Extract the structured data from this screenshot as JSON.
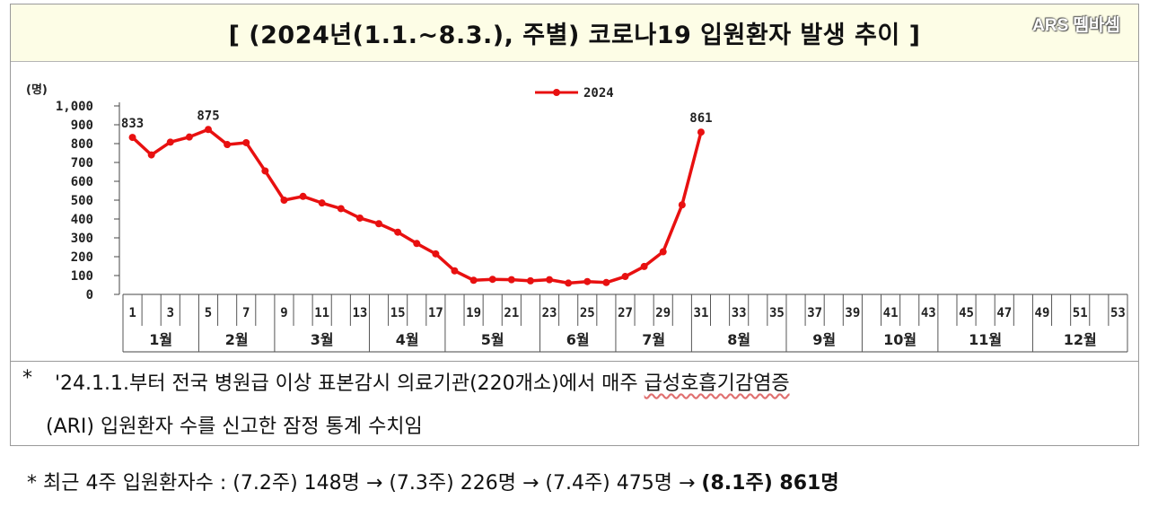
{
  "title": "[ (2024년(1.1.~8.3.), 주별) 코로나19 입원환자 발생 추이 ]",
  "watermark": "ARS 뗌바셈",
  "chart_data": {
    "type": "line",
    "ylabel": "(명)",
    "ylim": [
      0,
      1000
    ],
    "yticks": [
      "0",
      "100",
      "200",
      "300",
      "400",
      "500",
      "600",
      "700",
      "800",
      "900",
      "1,000"
    ],
    "xweeks_total": 53,
    "xtick_labels": [
      "1",
      "3",
      "5",
      "7",
      "9",
      "11",
      "13",
      "15",
      "17",
      "19",
      "21",
      "23",
      "25",
      "27",
      "29",
      "31",
      "33",
      "35",
      "37",
      "39",
      "41",
      "43",
      "45",
      "47",
      "49",
      "51",
      "53"
    ],
    "months": [
      {
        "label": "1월",
        "start": 1,
        "end": 4
      },
      {
        "label": "2월",
        "start": 5,
        "end": 8
      },
      {
        "label": "3월",
        "start": 9,
        "end": 13
      },
      {
        "label": "4월",
        "start": 14,
        "end": 17
      },
      {
        "label": "5월",
        "start": 18,
        "end": 22
      },
      {
        "label": "6월",
        "start": 23,
        "end": 26
      },
      {
        "label": "7월",
        "start": 27,
        "end": 30
      },
      {
        "label": "8월",
        "start": 31,
        "end": 35
      },
      {
        "label": "9월",
        "start": 36,
        "end": 39
      },
      {
        "label": "10월",
        "start": 40,
        "end": 43
      },
      {
        "label": "11월",
        "start": 44,
        "end": 48
      },
      {
        "label": "12월",
        "start": 49,
        "end": 53
      }
    ],
    "series": [
      {
        "name": "2024",
        "color": "#e81010",
        "x": [
          1,
          2,
          3,
          4,
          5,
          6,
          7,
          8,
          9,
          10,
          11,
          12,
          13,
          14,
          15,
          16,
          17,
          18,
          19,
          20,
          21,
          22,
          23,
          24,
          25,
          26,
          27,
          28,
          29,
          30,
          31
        ],
        "values": [
          833,
          740,
          808,
          835,
          875,
          795,
          805,
          655,
          500,
          520,
          485,
          455,
          405,
          375,
          330,
          270,
          215,
          125,
          75,
          80,
          78,
          72,
          78,
          60,
          68,
          63,
          95,
          148,
          226,
          475,
          861
        ]
      }
    ],
    "data_labels": [
      {
        "x": 1,
        "text": "833"
      },
      {
        "x": 5,
        "text": "875"
      },
      {
        "x": 31,
        "text": "861"
      }
    ],
    "legend_position": "top-center"
  },
  "notes": {
    "star": "*",
    "line1_pre": "'24.1.1.부터 전국 병원급 이상 표본감시 의료기관(220개소)에서 매주 ",
    "line1_wavy": "급성호흡기감염증",
    "line2": "(ARI) 입원환자 수를 신고한 잠정 통계 수치임"
  },
  "footnote": {
    "text": "* 최근 4주 입원환자수 : (7.2주) 148명 → (7.3주) 226명 → (7.4주) 475명 → ",
    "bold": "(8.1주) 861명"
  }
}
